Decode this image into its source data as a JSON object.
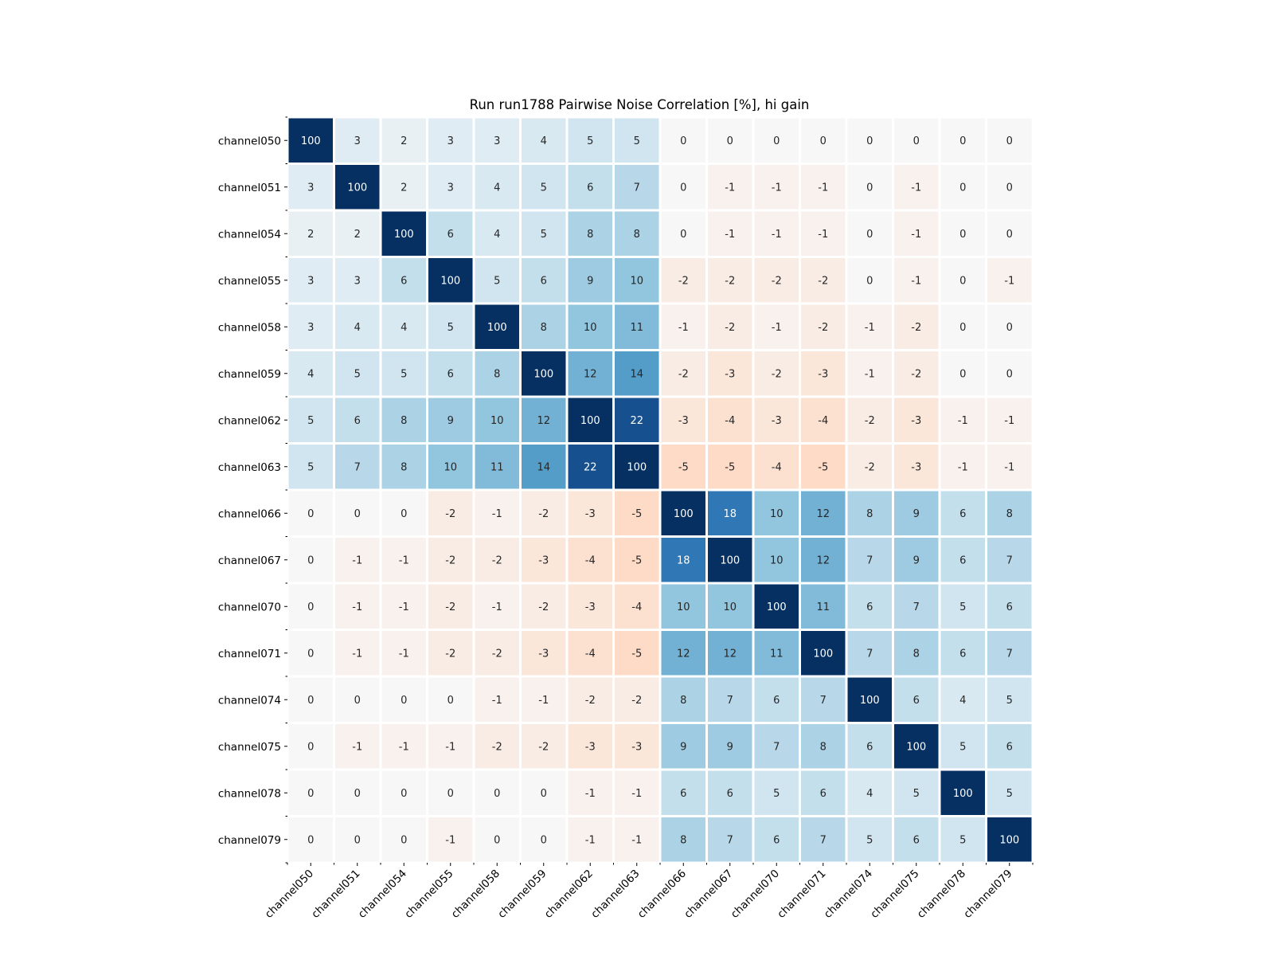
{
  "chart_data": {
    "type": "heatmap",
    "title": "Run run1788 Pairwise Noise Correlation [%], hi gain",
    "colormap": "RdBu diverging, blue positive / red negative, vmin -25, vmax 25",
    "vmin": -25,
    "vmax": 25,
    "row_labels": [
      "channel050",
      "channel051",
      "channel054",
      "channel055",
      "channel058",
      "channel059",
      "channel062",
      "channel063",
      "channel066",
      "channel067",
      "channel070",
      "channel071",
      "channel074",
      "channel075",
      "channel078",
      "channel079"
    ],
    "col_labels": [
      "channel050",
      "channel051",
      "channel054",
      "channel055",
      "channel058",
      "channel059",
      "channel062",
      "channel063",
      "channel066",
      "channel067",
      "channel070",
      "channel071",
      "channel074",
      "channel075",
      "channel078",
      "channel079"
    ],
    "values": [
      [
        100,
        3,
        2,
        3,
        3,
        4,
        5,
        5,
        0,
        0,
        0,
        0,
        0,
        0,
        0,
        0
      ],
      [
        3,
        100,
        2,
        3,
        4,
        5,
        6,
        7,
        0,
        -1,
        -1,
        -1,
        0,
        -1,
        0,
        0
      ],
      [
        2,
        2,
        100,
        6,
        4,
        5,
        8,
        8,
        0,
        -1,
        -1,
        -1,
        0,
        -1,
        0,
        0
      ],
      [
        3,
        3,
        6,
        100,
        5,
        6,
        9,
        10,
        -2,
        -2,
        -2,
        -2,
        0,
        -1,
        0,
        -1
      ],
      [
        3,
        4,
        4,
        5,
        100,
        8,
        10,
        11,
        -1,
        -2,
        -1,
        -2,
        -1,
        -2,
        0,
        0
      ],
      [
        4,
        5,
        5,
        6,
        8,
        100,
        12,
        14,
        -2,
        -3,
        -2,
        -3,
        -1,
        -2,
        0,
        0
      ],
      [
        5,
        6,
        8,
        9,
        10,
        12,
        100,
        22,
        -3,
        -4,
        -3,
        -4,
        -2,
        -3,
        -1,
        -1
      ],
      [
        5,
        7,
        8,
        10,
        11,
        14,
        22,
        100,
        -5,
        -5,
        -4,
        -5,
        -2,
        -3,
        -1,
        -1
      ],
      [
        0,
        0,
        0,
        -2,
        -1,
        -2,
        -3,
        -5,
        100,
        18,
        10,
        12,
        8,
        9,
        6,
        8
      ],
      [
        0,
        -1,
        -1,
        -2,
        -2,
        -3,
        -4,
        -5,
        18,
        100,
        10,
        12,
        7,
        9,
        6,
        7
      ],
      [
        0,
        -1,
        -1,
        -2,
        -1,
        -2,
        -3,
        -4,
        10,
        10,
        100,
        11,
        6,
        7,
        5,
        6
      ],
      [
        0,
        -1,
        -1,
        -2,
        -2,
        -3,
        -4,
        -5,
        12,
        12,
        11,
        100,
        7,
        8,
        6,
        7
      ],
      [
        0,
        0,
        0,
        0,
        -1,
        -1,
        -2,
        -2,
        8,
        7,
        6,
        7,
        100,
        6,
        4,
        5
      ],
      [
        0,
        -1,
        -1,
        -1,
        -2,
        -2,
        -3,
        -3,
        9,
        9,
        7,
        8,
        6,
        100,
        5,
        6
      ],
      [
        0,
        0,
        0,
        0,
        0,
        0,
        -1,
        -1,
        6,
        6,
        5,
        6,
        4,
        5,
        100,
        5
      ],
      [
        0,
        0,
        0,
        -1,
        0,
        0,
        -1,
        -1,
        8,
        7,
        6,
        7,
        5,
        6,
        5,
        100
      ]
    ],
    "xlabel": "",
    "ylabel": "",
    "annotations": "cell values shown as integers",
    "legend": "none"
  }
}
